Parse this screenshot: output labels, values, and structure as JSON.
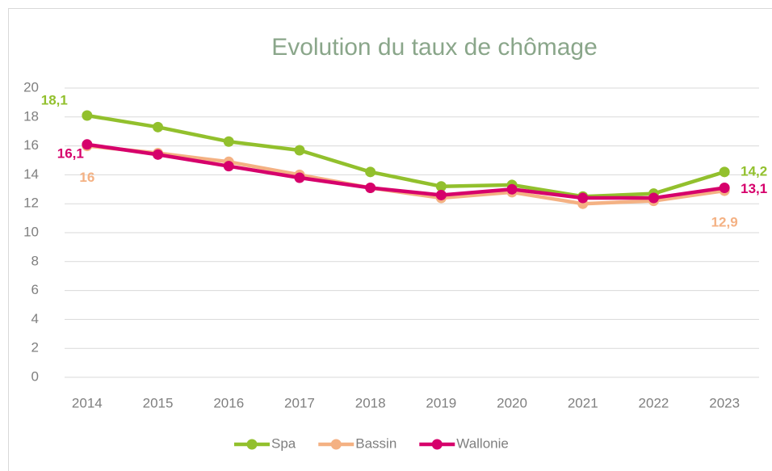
{
  "chart_data": {
    "type": "line",
    "title": "Evolution du taux de chômage",
    "categories": [
      "2014",
      "2015",
      "2016",
      "2017",
      "2018",
      "2019",
      "2020",
      "2021",
      "2022",
      "2023"
    ],
    "series": [
      {
        "name": "Spa",
        "color": "#92c02d",
        "values": [
          18.1,
          17.3,
          16.3,
          15.7,
          14.2,
          13.2,
          13.3,
          12.5,
          12.7,
          14.2
        ],
        "value_labels": [
          "18,1",
          null,
          null,
          null,
          null,
          null,
          null,
          null,
          null,
          "14,2"
        ]
      },
      {
        "name": "Bassin",
        "color": "#f4b183",
        "values": [
          16,
          15.5,
          14.9,
          14.0,
          13.1,
          12.4,
          12.8,
          12.0,
          12.2,
          12.9
        ],
        "value_labels": [
          "16",
          null,
          null,
          null,
          null,
          null,
          null,
          null,
          null,
          "12,9"
        ]
      },
      {
        "name": "Wallonie",
        "color": "#d6006b",
        "values": [
          16.1,
          15.4,
          14.6,
          13.8,
          13.1,
          12.6,
          13.0,
          12.4,
          12.4,
          13.1
        ],
        "value_labels": [
          "16,1",
          null,
          null,
          null,
          null,
          null,
          null,
          null,
          null,
          "13,1"
        ]
      }
    ],
    "ylim": [
      0,
      20
    ],
    "yticks": [
      0,
      2,
      4,
      6,
      8,
      10,
      12,
      14,
      16,
      18,
      20
    ],
    "grid": true,
    "legend": "bottom"
  }
}
